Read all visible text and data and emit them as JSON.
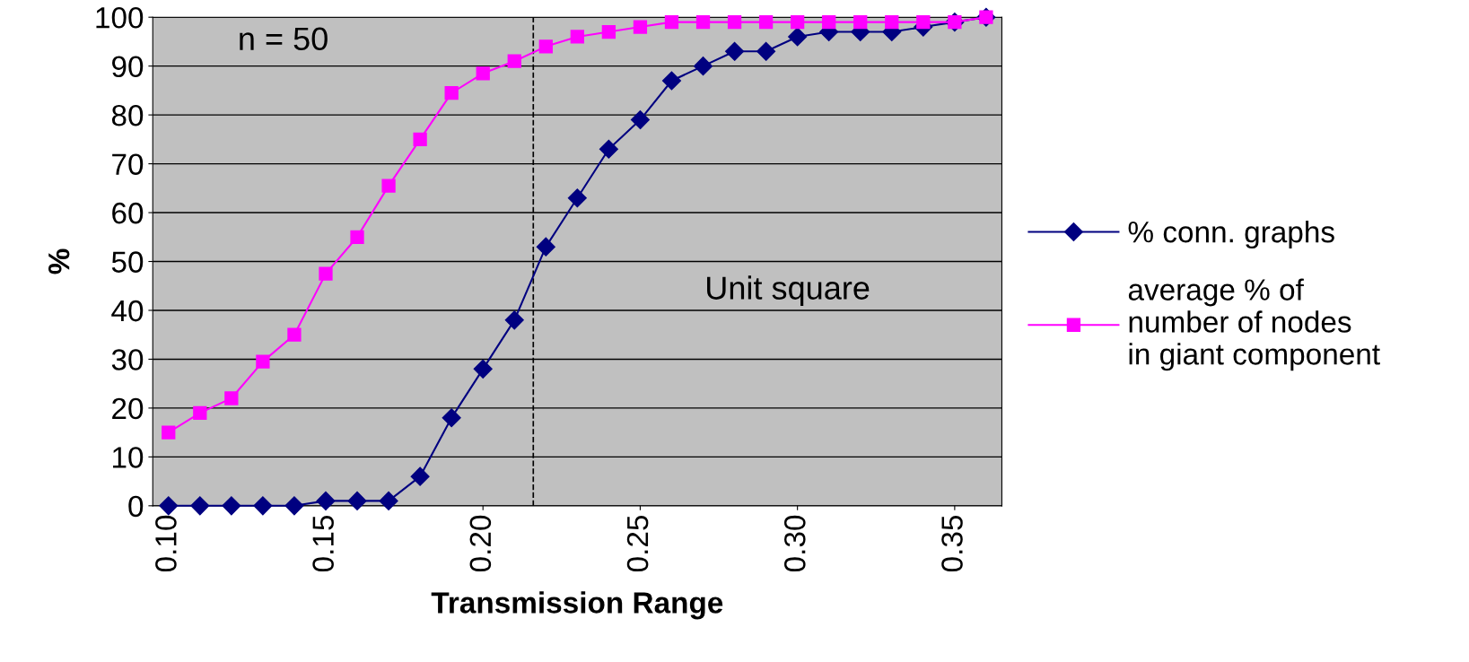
{
  "chart_data": {
    "type": "line",
    "xlabel": "Transmission Range",
    "ylabel": "%",
    "x": [
      0.1,
      0.11,
      0.12,
      0.13,
      0.14,
      0.15,
      0.16,
      0.17,
      0.18,
      0.19,
      0.2,
      0.21,
      0.22,
      0.23,
      0.24,
      0.25,
      0.26,
      0.27,
      0.28,
      0.29,
      0.3,
      0.31,
      0.32,
      0.33,
      0.34,
      0.35,
      0.36
    ],
    "series": [
      {
        "name": "% conn. graphs",
        "color": "#000080",
        "marker": "diamond",
        "values": [
          0,
          0,
          0,
          0,
          0,
          1,
          1,
          1,
          6,
          18,
          28,
          38,
          53,
          63,
          73,
          79,
          87,
          90,
          93,
          93,
          96,
          97,
          97,
          97,
          98,
          99,
          100
        ]
      },
      {
        "name": "average % of\nnumber of nodes\nin giant component",
        "color": "#ff00ff",
        "marker": "square",
        "values": [
          15,
          19,
          22,
          29.5,
          35,
          47.5,
          55,
          65.5,
          75,
          84.5,
          88.5,
          91,
          94,
          96,
          97,
          98,
          99,
          99,
          99,
          99,
          99,
          99,
          99,
          99,
          99,
          99,
          100
        ]
      }
    ],
    "xlim": [
      0.095,
      0.365
    ],
    "xticks": [
      {
        "value": 0.1,
        "label": "0.10"
      },
      {
        "value": 0.15,
        "label": "0.15"
      },
      {
        "value": 0.2,
        "label": "0.20"
      },
      {
        "value": 0.25,
        "label": "0.25"
      },
      {
        "value": 0.3,
        "label": "0.30"
      },
      {
        "value": 0.35,
        "label": "0.35"
      }
    ],
    "ylim": [
      0,
      100
    ],
    "yticks": [
      0,
      10,
      20,
      30,
      40,
      50,
      60,
      70,
      80,
      90,
      100
    ],
    "grid": "y",
    "legend": "right",
    "line_style": "solid",
    "ref_lines": [
      {
        "axis": "x",
        "value": 0.216,
        "color": "#000000",
        "line_style": "dashed"
      }
    ],
    "annotations": [
      "n = 50",
      "Unit square"
    ]
  }
}
